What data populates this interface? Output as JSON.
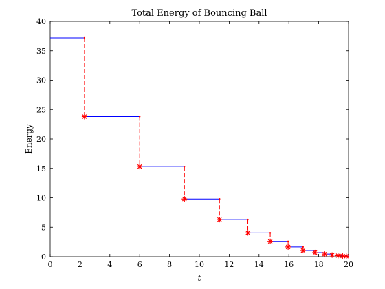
{
  "chart_data": {
    "type": "line",
    "title": "Total Energy of Bouncing Ball",
    "xlabel": "t",
    "ylabel": "Energy",
    "xlim": [
      0,
      20
    ],
    "ylim": [
      0,
      40
    ],
    "xticks": [
      0,
      2,
      4,
      6,
      8,
      10,
      12,
      14,
      16,
      18,
      20
    ],
    "yticks": [
      0,
      5,
      10,
      15,
      20,
      25,
      30,
      35,
      40
    ],
    "grid": false,
    "colors": {
      "flight": "#0000ff",
      "impact": "#ff0000"
    },
    "series": [
      {
        "style": "solid-blue",
        "segments": [
          [
            0,
            2.3,
            37.2
          ],
          [
            2.3,
            6.0,
            23.8
          ],
          [
            6.0,
            9.0,
            15.3
          ],
          [
            9.0,
            11.35,
            9.8
          ],
          [
            11.35,
            13.25,
            6.3
          ],
          [
            13.25,
            14.75,
            4.05
          ],
          [
            14.75,
            15.95,
            2.6
          ],
          [
            15.95,
            16.95,
            1.65
          ],
          [
            16.95,
            17.75,
            1.05
          ],
          [
            17.75,
            18.4,
            0.7
          ],
          [
            18.4,
            18.9,
            0.45
          ],
          [
            18.9,
            19.3,
            0.28
          ],
          [
            19.3,
            19.6,
            0.18
          ],
          [
            19.6,
            19.85,
            0.12
          ],
          [
            19.85,
            20.0,
            0.08
          ]
        ]
      },
      {
        "style": "dashed-red",
        "impacts": [
          [
            2.3,
            37.2,
            23.8
          ],
          [
            6.0,
            23.8,
            15.3
          ],
          [
            9.0,
            15.3,
            9.8
          ],
          [
            11.35,
            9.8,
            6.3
          ],
          [
            13.25,
            6.3,
            4.05
          ],
          [
            14.75,
            4.05,
            2.6
          ],
          [
            15.95,
            2.6,
            1.65
          ],
          [
            16.95,
            1.65,
            1.05
          ],
          [
            17.75,
            1.05,
            0.7
          ],
          [
            18.4,
            0.7,
            0.45
          ],
          [
            18.9,
            0.45,
            0.28
          ],
          [
            19.3,
            0.28,
            0.18
          ],
          [
            19.6,
            0.18,
            0.12
          ],
          [
            19.85,
            0.12,
            0.08
          ]
        ]
      }
    ]
  }
}
